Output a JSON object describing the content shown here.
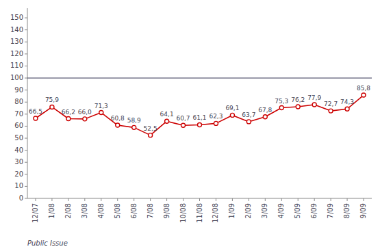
{
  "chart_data": {
    "type": "line",
    "categories": [
      "12/07",
      "1/08",
      "2/08",
      "3/08",
      "4/08",
      "5/08",
      "6/08",
      "7/08",
      "9/08",
      "10/08",
      "11/08",
      "12/08",
      "1/09",
      "2/09",
      "3/09",
      "4/09",
      "5/09",
      "6/09",
      "7/09",
      "8/09",
      "9/09"
    ],
    "values": [
      66.5,
      75.9,
      66.2,
      66.0,
      71.3,
      60.8,
      58.9,
      52.5,
      64.1,
      60.7,
      61.1,
      62.3,
      69.1,
      63.7,
      67.8,
      75.3,
      76.2,
      77.9,
      72.7,
      74.3,
      85.8
    ],
    "value_labels": [
      "66,5",
      "75,9",
      "66,2",
      "66,0",
      "71,3",
      "60,8",
      "58,9",
      "52,5",
      "64,1",
      "60,7",
      "61,1",
      "62,3",
      "69,1",
      "63,7",
      "67,8",
      "75,3",
      "76,2",
      "77,9",
      "72,7",
      "74,3",
      "85,8"
    ],
    "color": "#cc0000",
    "marker": "circle",
    "data_labels": true,
    "grid": false,
    "hline": 100,
    "footer": "Public Issue",
    "ylim": [
      0,
      158
    ],
    "yticks": [
      0,
      10,
      20,
      30,
      40,
      50,
      60,
      70,
      80,
      90,
      100,
      110,
      120,
      130,
      140,
      150
    ]
  }
}
